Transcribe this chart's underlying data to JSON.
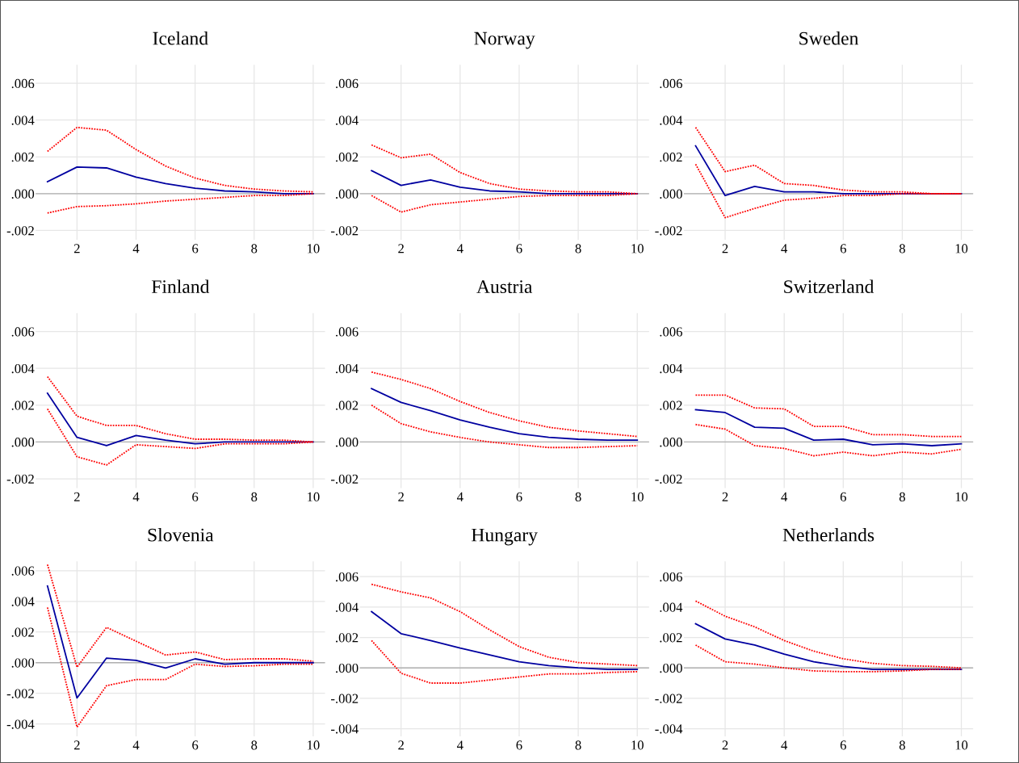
{
  "chart_data": [
    {
      "type": "line",
      "title": "Iceland",
      "x": [
        1,
        2,
        3,
        4,
        5,
        6,
        7,
        8,
        9,
        10
      ],
      "xlim": [
        0.6,
        10.4
      ],
      "xticks": [
        2,
        4,
        6,
        8,
        10
      ],
      "ylim": [
        -0.0025,
        0.007
      ],
      "yticks": [
        {
          "value": -0.002,
          "label": "-.002"
        },
        {
          "value": 0,
          "label": ".000"
        },
        {
          "value": 0.002,
          "label": ".002"
        },
        {
          "value": 0.004,
          "label": ".004"
        },
        {
          "value": 0.006,
          "label": ".006"
        }
      ],
      "grid": true,
      "ref_lines": [
        {
          "axis": "y",
          "value": 0,
          "color": "#b0b0b0"
        }
      ],
      "series": [
        {
          "color": "#0000a0",
          "line_style": "solid",
          "values": [
            0.00065,
            0.00145,
            0.0014,
            0.0009,
            0.00055,
            0.0003,
            0.00015,
            0.0001,
            0,
            0
          ]
        },
        {
          "color": "#ff0000",
          "line_style": "dotted",
          "values": [
            0.0023,
            0.0036,
            0.00345,
            0.0024,
            0.0015,
            0.00085,
            0.00045,
            0.00025,
            0.00015,
            0.0001
          ]
        },
        {
          "color": "#ff0000",
          "line_style": "dotted",
          "values": [
            -0.00105,
            -0.0007,
            -0.00065,
            -0.00055,
            -0.0004,
            -0.0003,
            -0.0002,
            -0.0001,
            -0.0001,
            0
          ]
        }
      ]
    },
    {
      "type": "line",
      "title": "Norway",
      "x": [
        1,
        2,
        3,
        4,
        5,
        6,
        7,
        8,
        9,
        10
      ],
      "xlim": [
        0.6,
        10.4
      ],
      "xticks": [
        2,
        4,
        6,
        8,
        10
      ],
      "ylim": [
        -0.0025,
        0.007
      ],
      "yticks": [
        {
          "value": -0.002,
          "label": "-.002"
        },
        {
          "value": 0,
          "label": ".000"
        },
        {
          "value": 0.002,
          "label": ".002"
        },
        {
          "value": 0.004,
          "label": ".004"
        },
        {
          "value": 0.006,
          "label": ".006"
        }
      ],
      "grid": true,
      "ref_lines": [
        {
          "axis": "y",
          "value": 0,
          "color": "#b0b0b0"
        }
      ],
      "series": [
        {
          "color": "#0000a0",
          "line_style": "solid",
          "values": [
            0.00125,
            0.00045,
            0.00075,
            0.00035,
            0.00015,
            0.0001,
            0,
            0,
            0,
            0
          ]
        },
        {
          "color": "#ff0000",
          "line_style": "dotted",
          "values": [
            0.00265,
            0.00195,
            0.00215,
            0.00115,
            0.00055,
            0.00025,
            0.00015,
            0.0001,
            0.0001,
            0
          ]
        },
        {
          "color": "#ff0000",
          "line_style": "dotted",
          "values": [
            -0.0001,
            -0.001,
            -0.0006,
            -0.00045,
            -0.0003,
            -0.00015,
            -0.0001,
            -0.0001,
            -0.0001,
            0
          ]
        }
      ]
    },
    {
      "type": "line",
      "title": "Sweden",
      "x": [
        1,
        2,
        3,
        4,
        5,
        6,
        7,
        8,
        9,
        10
      ],
      "xlim": [
        0.6,
        10.4
      ],
      "xticks": [
        2,
        4,
        6,
        8,
        10
      ],
      "ylim": [
        -0.0025,
        0.007
      ],
      "yticks": [
        {
          "value": -0.002,
          "label": "-.002"
        },
        {
          "value": 0,
          "label": ".000"
        },
        {
          "value": 0.002,
          "label": ".002"
        },
        {
          "value": 0.004,
          "label": ".004"
        },
        {
          "value": 0.006,
          "label": ".006"
        }
      ],
      "grid": true,
      "ref_lines": [
        {
          "axis": "y",
          "value": 0,
          "color": "#b0b0b0"
        }
      ],
      "series": [
        {
          "color": "#0000a0",
          "line_style": "solid",
          "values": [
            0.0026,
            -0.0001,
            0.0004,
            0.0001,
            0.0001,
            0,
            0,
            0,
            0,
            0
          ]
        },
        {
          "color": "#ff0000",
          "line_style": "dotted",
          "values": [
            0.0036,
            0.0012,
            0.00155,
            0.00055,
            0.00045,
            0.0002,
            0.0001,
            0.0001,
            0,
            0
          ]
        },
        {
          "color": "#ff0000",
          "line_style": "dotted",
          "values": [
            0.0016,
            -0.0013,
            -0.0008,
            -0.00035,
            -0.00025,
            -0.0001,
            -0.0001,
            0,
            0,
            0
          ]
        }
      ]
    },
    {
      "type": "line",
      "title": "Finland",
      "x": [
        1,
        2,
        3,
        4,
        5,
        6,
        7,
        8,
        9,
        10
      ],
      "xlim": [
        0.6,
        10.4
      ],
      "xticks": [
        2,
        4,
        6,
        8,
        10
      ],
      "ylim": [
        -0.0025,
        0.007
      ],
      "yticks": [
        {
          "value": -0.002,
          "label": "-.002"
        },
        {
          "value": 0,
          "label": ".000"
        },
        {
          "value": 0.002,
          "label": ".002"
        },
        {
          "value": 0.004,
          "label": ".004"
        },
        {
          "value": 0.006,
          "label": ".006"
        }
      ],
      "grid": true,
      "ref_lines": [
        {
          "axis": "y",
          "value": 0,
          "color": "#b0b0b0"
        }
      ],
      "series": [
        {
          "color": "#0000a0",
          "line_style": "solid",
          "values": [
            0.00265,
            0.00025,
            -0.0002,
            0.00035,
            0.0001,
            -0.0001,
            0,
            0,
            0,
            0
          ]
        },
        {
          "color": "#ff0000",
          "line_style": "dotted",
          "values": [
            0.00355,
            0.0014,
            0.0009,
            0.0009,
            0.00045,
            0.00015,
            0.00015,
            0.0001,
            0.0001,
            0
          ]
        },
        {
          "color": "#ff0000",
          "line_style": "dotted",
          "values": [
            0.0018,
            -0.0008,
            -0.00125,
            -0.00015,
            -0.00025,
            -0.00035,
            -0.0001,
            -0.0001,
            -0.0001,
            0
          ]
        }
      ]
    },
    {
      "type": "line",
      "title": "Austria",
      "x": [
        1,
        2,
        3,
        4,
        5,
        6,
        7,
        8,
        9,
        10
      ],
      "xlim": [
        0.6,
        10.4
      ],
      "xticks": [
        2,
        4,
        6,
        8,
        10
      ],
      "ylim": [
        -0.0025,
        0.007
      ],
      "yticks": [
        {
          "value": -0.002,
          "label": "-.002"
        },
        {
          "value": 0,
          "label": ".000"
        },
        {
          "value": 0.002,
          "label": ".002"
        },
        {
          "value": 0.004,
          "label": ".004"
        },
        {
          "value": 0.006,
          "label": ".006"
        }
      ],
      "grid": true,
      "ref_lines": [
        {
          "axis": "y",
          "value": 0,
          "color": "#b0b0b0"
        }
      ],
      "series": [
        {
          "color": "#0000a0",
          "line_style": "solid",
          "values": [
            0.0029,
            0.00215,
            0.0017,
            0.0012,
            0.0008,
            0.00045,
            0.00025,
            0.00015,
            0.0001,
            0.0001
          ]
        },
        {
          "color": "#ff0000",
          "line_style": "dotted",
          "values": [
            0.0038,
            0.0034,
            0.0029,
            0.0022,
            0.0016,
            0.00115,
            0.0008,
            0.0006,
            0.00045,
            0.0003
          ]
        },
        {
          "color": "#ff0000",
          "line_style": "dotted",
          "values": [
            0.002,
            0.001,
            0.00055,
            0.00025,
            0,
            -0.00015,
            -0.0003,
            -0.0003,
            -0.00025,
            -0.0002
          ]
        }
      ]
    },
    {
      "type": "line",
      "title": "Switzerland",
      "x": [
        1,
        2,
        3,
        4,
        5,
        6,
        7,
        8,
        9,
        10
      ],
      "xlim": [
        0.6,
        10.4
      ],
      "xticks": [
        2,
        4,
        6,
        8,
        10
      ],
      "ylim": [
        -0.0025,
        0.007
      ],
      "yticks": [
        {
          "value": -0.002,
          "label": "-.002"
        },
        {
          "value": 0,
          "label": ".000"
        },
        {
          "value": 0.002,
          "label": ".002"
        },
        {
          "value": 0.004,
          "label": ".004"
        },
        {
          "value": 0.006,
          "label": ".006"
        }
      ],
      "grid": true,
      "ref_lines": [
        {
          "axis": "y",
          "value": 0,
          "color": "#b0b0b0"
        }
      ],
      "series": [
        {
          "color": "#0000a0",
          "line_style": "solid",
          "values": [
            0.00175,
            0.0016,
            0.0008,
            0.00075,
            0.0001,
            0.00015,
            -0.00015,
            -0.0001,
            -0.0002,
            -0.0001
          ]
        },
        {
          "color": "#ff0000",
          "line_style": "dotted",
          "values": [
            0.00255,
            0.00255,
            0.00185,
            0.0018,
            0.00085,
            0.00085,
            0.0004,
            0.0004,
            0.0003,
            0.0003
          ]
        },
        {
          "color": "#ff0000",
          "line_style": "dotted",
          "values": [
            0.00095,
            0.0007,
            -0.0002,
            -0.00035,
            -0.00075,
            -0.00055,
            -0.00075,
            -0.00055,
            -0.00065,
            -0.0004
          ]
        }
      ]
    },
    {
      "type": "line",
      "title": "Slovenia",
      "x": [
        1,
        2,
        3,
        4,
        5,
        6,
        7,
        8,
        9,
        10
      ],
      "xlim": [
        0.6,
        10.4
      ],
      "xticks": [
        2,
        4,
        6,
        8,
        10
      ],
      "ylim": [
        -0.0048,
        0.0066
      ],
      "yticks": [
        {
          "value": -0.004,
          "label": "-.004"
        },
        {
          "value": -0.002,
          "label": "-.002"
        },
        {
          "value": 0,
          "label": ".000"
        },
        {
          "value": 0.002,
          "label": ".002"
        },
        {
          "value": 0.004,
          "label": ".004"
        },
        {
          "value": 0.006,
          "label": ".006"
        }
      ],
      "grid": true,
      "ref_lines": [
        {
          "axis": "y",
          "value": 0,
          "color": "#b0b0b0"
        }
      ],
      "series": [
        {
          "color": "#0000a0",
          "line_style": "solid",
          "values": [
            0.005,
            -0.0023,
            0.0003,
            0.00015,
            -0.00035,
            0.00025,
            -0.0001,
            0,
            0,
            0
          ]
        },
        {
          "color": "#ff0000",
          "line_style": "dotted",
          "values": [
            0.0064,
            -0.0003,
            0.0023,
            0.0014,
            0.0005,
            0.0007,
            0.0002,
            0.00025,
            0.00025,
            0.0001
          ]
        },
        {
          "color": "#ff0000",
          "line_style": "dotted",
          "values": [
            0.0036,
            -0.0042,
            -0.0015,
            -0.0011,
            -0.0011,
            -0.0001,
            -0.00025,
            -0.0002,
            -0.0001,
            -0.0001
          ]
        }
      ]
    },
    {
      "type": "line",
      "title": "Hungary",
      "x": [
        1,
        2,
        3,
        4,
        5,
        6,
        7,
        8,
        9,
        10
      ],
      "xlim": [
        0.6,
        10.4
      ],
      "xticks": [
        2,
        4,
        6,
        8,
        10
      ],
      "ylim": [
        -0.0045,
        0.007
      ],
      "yticks": [
        {
          "value": -0.004,
          "label": "-.004"
        },
        {
          "value": -0.002,
          "label": "-.002"
        },
        {
          "value": 0,
          "label": ".000"
        },
        {
          "value": 0.002,
          "label": ".002"
        },
        {
          "value": 0.004,
          "label": ".004"
        },
        {
          "value": 0.006,
          "label": ".006"
        }
      ],
      "grid": true,
      "ref_lines": [
        {
          "axis": "y",
          "value": 0,
          "color": "#b0b0b0"
        }
      ],
      "series": [
        {
          "color": "#0000a0",
          "line_style": "solid",
          "values": [
            0.0037,
            0.00225,
            0.0018,
            0.0013,
            0.00085,
            0.0004,
            0.00015,
            0,
            -0.0001,
            -0.0001
          ]
        },
        {
          "color": "#ff0000",
          "line_style": "dotted",
          "values": [
            0.0055,
            0.005,
            0.0046,
            0.0037,
            0.0025,
            0.0014,
            0.0007,
            0.00035,
            0.00025,
            0.00015
          ]
        },
        {
          "color": "#ff0000",
          "line_style": "dotted",
          "values": [
            0.0018,
            -0.00035,
            -0.001,
            -0.001,
            -0.0008,
            -0.0006,
            -0.0004,
            -0.0004,
            -0.0003,
            -0.00025
          ]
        }
      ]
    },
    {
      "type": "line",
      "title": "Netherlands",
      "x": [
        1,
        2,
        3,
        4,
        5,
        6,
        7,
        8,
        9,
        10
      ],
      "xlim": [
        0.6,
        10.4
      ],
      "xticks": [
        2,
        4,
        6,
        8,
        10
      ],
      "ylim": [
        -0.0045,
        0.007
      ],
      "yticks": [
        {
          "value": -0.004,
          "label": "-.004"
        },
        {
          "value": -0.002,
          "label": "-.002"
        },
        {
          "value": 0,
          "label": ".000"
        },
        {
          "value": 0.002,
          "label": ".002"
        },
        {
          "value": 0.004,
          "label": ".004"
        },
        {
          "value": 0.006,
          "label": ".006"
        }
      ],
      "grid": true,
      "ref_lines": [
        {
          "axis": "y",
          "value": 0,
          "color": "#b0b0b0"
        }
      ],
      "series": [
        {
          "color": "#0000a0",
          "line_style": "solid",
          "values": [
            0.0029,
            0.0019,
            0.0015,
            0.0009,
            0.0004,
            0.0001,
            -0.0001,
            -0.0001,
            -0.0001,
            -0.0001
          ]
        },
        {
          "color": "#ff0000",
          "line_style": "dotted",
          "values": [
            0.0044,
            0.0034,
            0.0027,
            0.0018,
            0.0011,
            0.0006,
            0.0003,
            0.00015,
            0.0001,
            0
          ]
        },
        {
          "color": "#ff0000",
          "line_style": "dotted",
          "values": [
            0.0015,
            0.0004,
            0.00025,
            0,
            -0.0002,
            -0.00025,
            -0.00025,
            -0.0002,
            -0.0001,
            -0.0001
          ]
        }
      ]
    }
  ]
}
